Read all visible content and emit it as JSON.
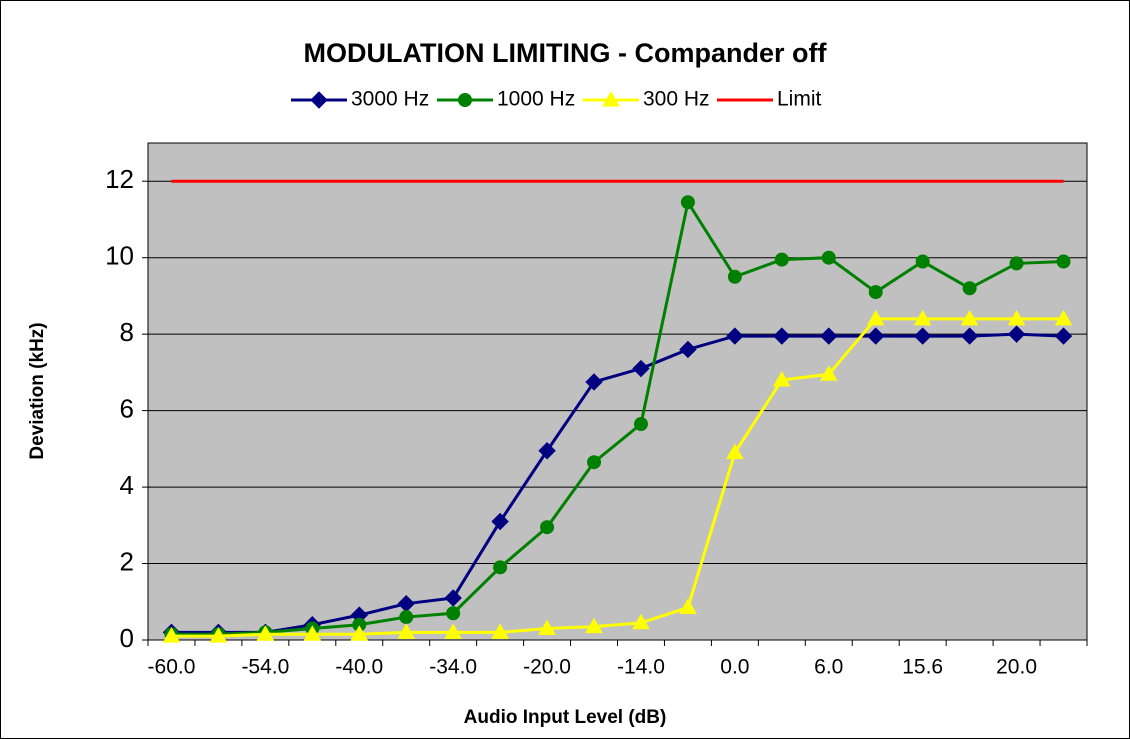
{
  "chart_data": {
    "type": "line",
    "title": "MODULATION LIMITING - Compander off",
    "x_label": "Audio Input Level (dB)",
    "y_label": "Deviation (kHz)",
    "categories": [
      "-60.0",
      null,
      "-54.0",
      null,
      "-40.0",
      null,
      "-34.0",
      null,
      "-20.0",
      null,
      "-14.0",
      null,
      "0.0",
      null,
      "6.0",
      null,
      "15.6",
      null,
      "20.0",
      null
    ],
    "series": [
      {
        "name": "3000 Hz",
        "color": "#000080",
        "marker": "diamond",
        "values": [
          0.2,
          0.2,
          0.2,
          0.4,
          0.65,
          0.95,
          1.1,
          3.1,
          4.95,
          6.75,
          7.1,
          7.6,
          7.95,
          7.95,
          7.95,
          7.95,
          7.95,
          7.95,
          8.0,
          7.95
        ]
      },
      {
        "name": "1000 Hz",
        "color": "#008000",
        "marker": "circle",
        "values": [
          0.15,
          0.15,
          0.2,
          0.3,
          0.4,
          0.6,
          0.7,
          1.9,
          2.95,
          4.65,
          5.65,
          11.45,
          9.5,
          9.95,
          10.0,
          9.1,
          9.9,
          9.2,
          9.85,
          9.9
        ]
      },
      {
        "name": "300 Hz",
        "color": "#ffff00",
        "marker": "triangle",
        "values": [
          0.1,
          0.1,
          0.15,
          0.15,
          0.15,
          0.2,
          0.2,
          0.2,
          0.3,
          0.35,
          0.45,
          0.85,
          4.9,
          6.8,
          6.95,
          8.4,
          8.4,
          8.4,
          8.4,
          8.4
        ]
      },
      {
        "name": "Limit",
        "color": "#ff0000",
        "values": [
          12,
          12,
          12,
          12,
          12,
          12,
          12,
          12,
          12,
          12,
          12,
          12,
          12,
          12,
          12,
          12,
          12,
          12,
          12,
          12
        ]
      }
    ],
    "ylim": [
      0,
      13
    ],
    "yticks": [
      0,
      2,
      4,
      6,
      8,
      10,
      12
    ],
    "grid": true,
    "legend": "top"
  }
}
